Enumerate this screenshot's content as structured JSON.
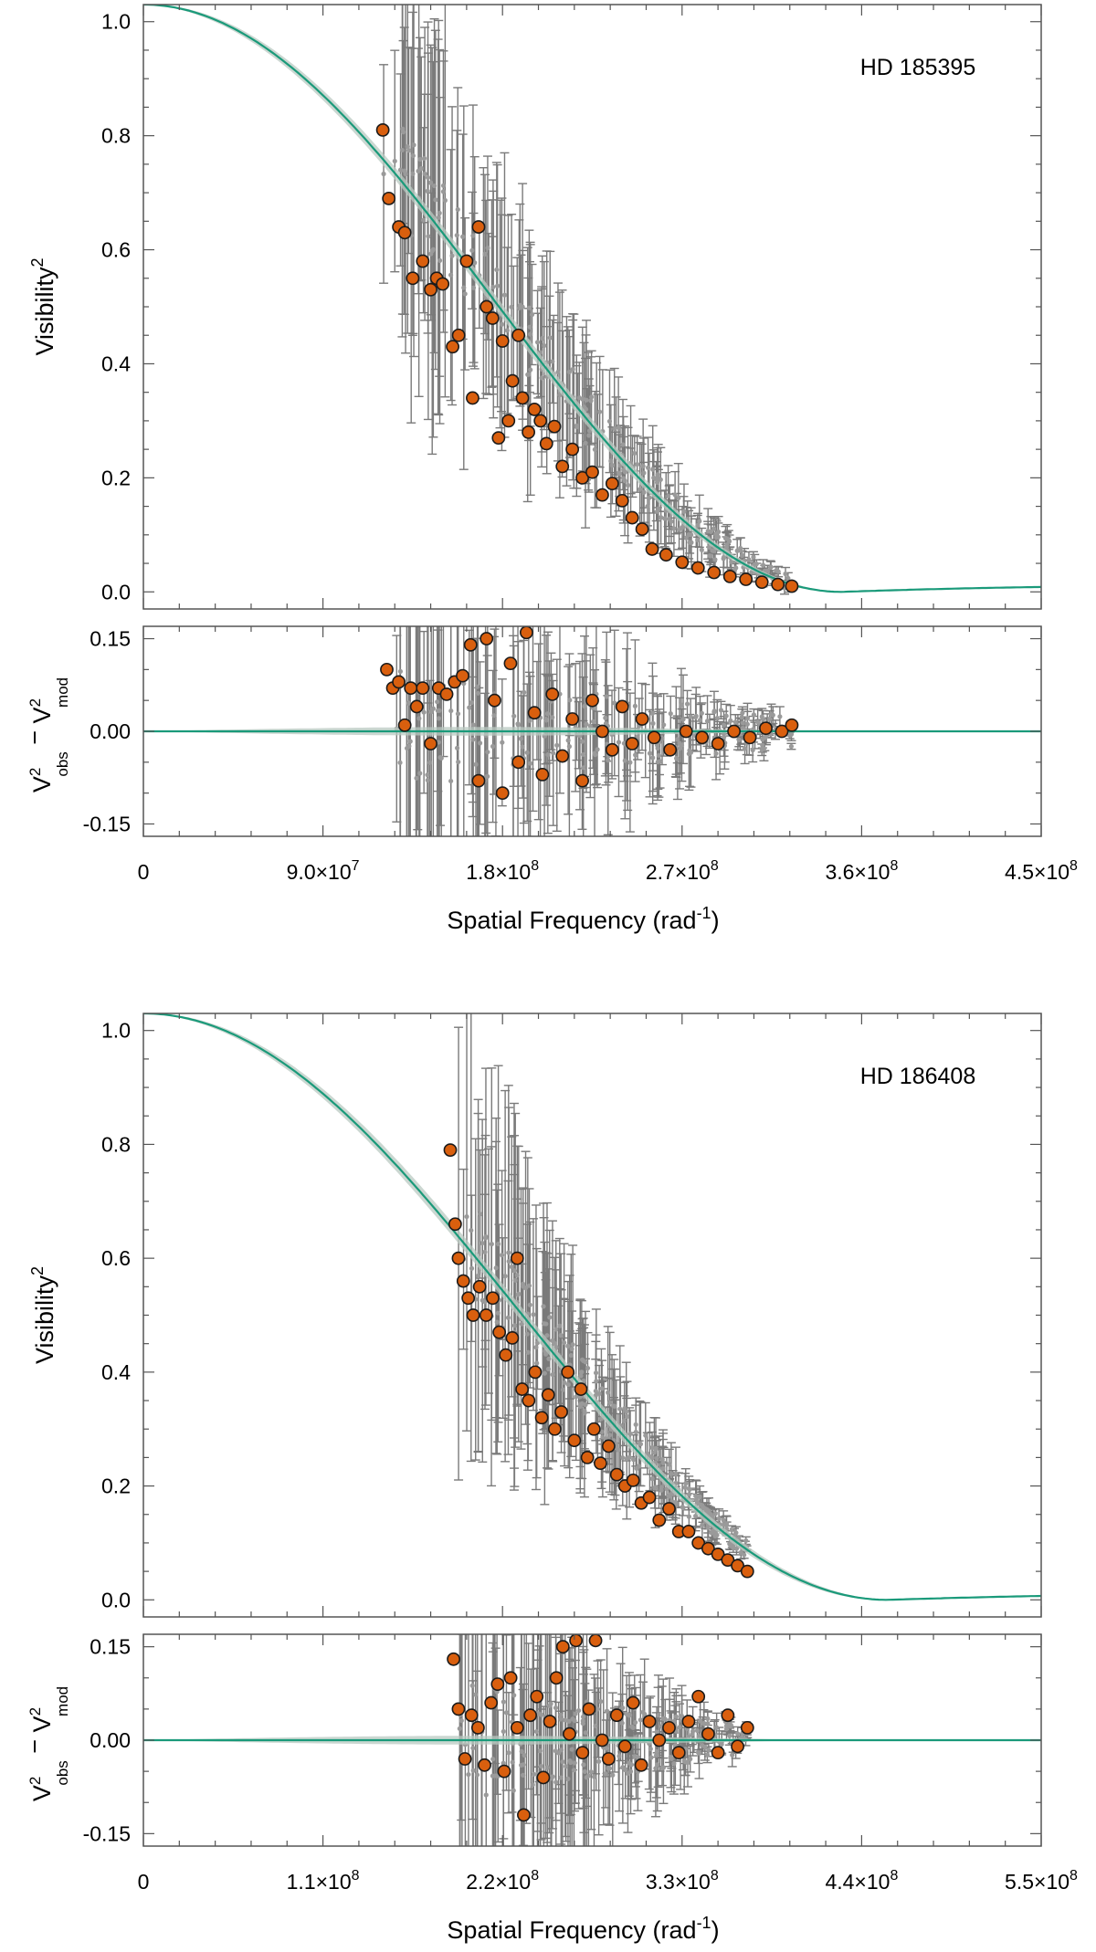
{
  "colors": {
    "model": "#1a9a7a",
    "band": "#b9c9c2",
    "average_fill": "#d95f0e",
    "average_edge": "#1a1a1a",
    "raw_points": "#9a9a9a",
    "error_bars": "#7a7a7a",
    "frame": "#555555"
  },
  "chart_data": [
    {
      "type": "scatter",
      "panel": "visibility",
      "star": "HD 185395",
      "title": "HD 185395",
      "ylabel": "Visibility",
      "ylabel_superscript": "2",
      "xlim": [
        0,
        450000000
      ],
      "ylim": [
        -0.03,
        1.03
      ],
      "yticks": [
        "0.0",
        "0.2",
        "0.4",
        "0.6",
        "0.8",
        "1.0"
      ],
      "ytick_values": [
        0,
        0.2,
        0.4,
        0.6,
        0.8,
        1.0
      ],
      "model": {
        "name": "limb-darkened disk",
        "zero_crossing": 350000000,
        "x_end": 450000000
      },
      "series": [
        {
          "name": "binned V2",
          "x": [
            120000000,
            123000000,
            128000000,
            131000000,
            135000000,
            140000000,
            144000000,
            147000000,
            150000000,
            155000000,
            158000000,
            162000000,
            165000000,
            168000000,
            172000000,
            175000000,
            178000000,
            180000000,
            183000000,
            185000000,
            188000000,
            190000000,
            193000000,
            196000000,
            199000000,
            202000000,
            206000000,
            210000000,
            215000000,
            220000000,
            225000000,
            230000000,
            235000000,
            240000000,
            245000000,
            250000000,
            255000000,
            262000000,
            270000000,
            278000000,
            286000000,
            294000000,
            302000000,
            310000000,
            318000000,
            325000000
          ],
          "y": [
            0.81,
            0.69,
            0.64,
            0.63,
            0.55,
            0.58,
            0.53,
            0.55,
            0.54,
            0.43,
            0.45,
            0.58,
            0.34,
            0.64,
            0.5,
            0.48,
            0.27,
            0.44,
            0.3,
            0.37,
            0.45,
            0.34,
            0.28,
            0.32,
            0.3,
            0.26,
            0.29,
            0.22,
            0.25,
            0.2,
            0.21,
            0.17,
            0.19,
            0.16,
            0.13,
            0.11,
            0.075,
            0.065,
            0.052,
            0.042,
            0.034,
            0.027,
            0.022,
            0.017,
            0.013,
            0.01
          ]
        }
      ]
    },
    {
      "type": "scatter",
      "panel": "residuals",
      "star": "HD 185395",
      "ylabel": "V²obs − V²mod",
      "xlabel": "Spatial Frequency (rad⁻¹)",
      "xlim": [
        0,
        450000000
      ],
      "ylim": [
        -0.17,
        0.17
      ],
      "yticks": [
        "-0.15",
        "0.00",
        "0.15"
      ],
      "ytick_values": [
        -0.15,
        0,
        0.15
      ],
      "xticks": [
        "0",
        "9.0×10⁷",
        "1.8×10⁸",
        "2.7×10⁸",
        "3.6×10⁸",
        "4.5×10⁸"
      ],
      "xtick_values": [
        0,
        90000000,
        180000000,
        270000000,
        360000000,
        450000000
      ],
      "series": [
        {
          "name": "residuals",
          "x": [
            122000000,
            125000000,
            128000000,
            131000000,
            134000000,
            137000000,
            140000000,
            144000000,
            148000000,
            152000000,
            156000000,
            160000000,
            164000000,
            168000000,
            172000000,
            176000000,
            180000000,
            184000000,
            188000000,
            192000000,
            196000000,
            200000000,
            205000000,
            210000000,
            215000000,
            220000000,
            225000000,
            230000000,
            235000000,
            240000000,
            245000000,
            250000000,
            256000000,
            264000000,
            272000000,
            280000000,
            288000000,
            296000000,
            304000000,
            312000000,
            320000000,
            325000000
          ],
          "y": [
            0.1,
            0.07,
            0.08,
            0.01,
            0.07,
            0.04,
            0.07,
            -0.02,
            0.07,
            0.06,
            0.08,
            0.09,
            0.14,
            -0.08,
            0.15,
            0.05,
            -0.1,
            0.11,
            -0.05,
            0.16,
            0.03,
            -0.07,
            0.06,
            -0.04,
            0.02,
            -0.08,
            0.05,
            0.0,
            -0.03,
            0.04,
            -0.02,
            0.02,
            -0.01,
            -0.03,
            0.0,
            -0.01,
            -0.02,
            0.0,
            -0.01,
            0.005,
            0.0,
            0.01
          ]
        }
      ]
    },
    {
      "type": "scatter",
      "panel": "visibility",
      "star": "HD 186408",
      "title": "HD 186408",
      "ylabel": "Visibility",
      "ylabel_superscript": "2",
      "xlim": [
        0,
        550000000
      ],
      "ylim": [
        -0.03,
        1.03
      ],
      "yticks": [
        "0.0",
        "0.2",
        "0.4",
        "0.6",
        "0.8",
        "1.0"
      ],
      "ytick_values": [
        0,
        0.2,
        0.4,
        0.6,
        0.8,
        1.0
      ],
      "model": {
        "name": "limb-darkened disk",
        "zero_crossing": 456000000,
        "x_end": 550000000
      },
      "series": [
        {
          "name": "binned V2",
          "x": [
            188000000,
            191000000,
            193000000,
            196000000,
            199000000,
            202000000,
            206000000,
            210000000,
            214000000,
            218000000,
            222000000,
            226000000,
            229000000,
            232000000,
            236000000,
            240000000,
            244000000,
            248000000,
            252000000,
            256000000,
            260000000,
            264000000,
            268000000,
            272000000,
            276000000,
            280000000,
            285000000,
            290000000,
            295000000,
            300000000,
            305000000,
            310000000,
            316000000,
            322000000,
            328000000,
            334000000,
            340000000,
            346000000,
            352000000,
            358000000,
            364000000,
            370000000
          ],
          "y": [
            0.79,
            0.66,
            0.6,
            0.56,
            0.53,
            0.5,
            0.55,
            0.5,
            0.53,
            0.47,
            0.43,
            0.46,
            0.6,
            0.37,
            0.35,
            0.4,
            0.32,
            0.36,
            0.3,
            0.33,
            0.4,
            0.28,
            0.37,
            0.25,
            0.3,
            0.24,
            0.27,
            0.22,
            0.2,
            0.21,
            0.17,
            0.18,
            0.14,
            0.16,
            0.12,
            0.12,
            0.1,
            0.09,
            0.08,
            0.07,
            0.06,
            0.05
          ]
        }
      ]
    },
    {
      "type": "scatter",
      "panel": "residuals",
      "star": "HD 186408",
      "ylabel": "V²obs − V²mod",
      "xlabel": "Spatial Frequency (rad⁻¹)",
      "xlim": [
        0,
        550000000
      ],
      "ylim": [
        -0.17,
        0.17
      ],
      "yticks": [
        "-0.15",
        "0.00",
        "0.15"
      ],
      "ytick_values": [
        -0.15,
        0,
        0.15
      ],
      "xticks": [
        "0",
        "1.1×10⁸",
        "2.2×10⁸",
        "3.3×10⁸",
        "4.4×10⁸",
        "5.5×10⁸"
      ],
      "xtick_values": [
        0,
        110000000,
        220000000,
        330000000,
        440000000,
        550000000
      ],
      "series": [
        {
          "name": "residuals",
          "x": [
            190000000,
            193000000,
            197000000,
            201000000,
            205000000,
            209000000,
            213000000,
            217000000,
            221000000,
            225000000,
            229000000,
            233000000,
            237000000,
            241000000,
            245000000,
            249000000,
            253000000,
            257000000,
            261000000,
            265000000,
            269000000,
            273000000,
            277000000,
            281000000,
            285000000,
            290000000,
            295000000,
            300000000,
            305000000,
            310000000,
            316000000,
            322000000,
            328000000,
            334000000,
            340000000,
            346000000,
            352000000,
            358000000,
            364000000,
            370000000
          ],
          "y": [
            0.13,
            0.05,
            -0.03,
            0.04,
            0.02,
            -0.04,
            0.06,
            0.09,
            -0.05,
            0.1,
            0.02,
            -0.12,
            0.04,
            0.07,
            -0.06,
            0.03,
            0.1,
            0.15,
            0.01,
            0.16,
            -0.02,
            0.05,
            0.16,
            0.0,
            -0.03,
            0.04,
            -0.01,
            0.06,
            -0.04,
            0.03,
            0.0,
            0.02,
            -0.02,
            0.03,
            0.07,
            0.01,
            -0.02,
            0.04,
            -0.01,
            0.02
          ]
        }
      ]
    }
  ]
}
